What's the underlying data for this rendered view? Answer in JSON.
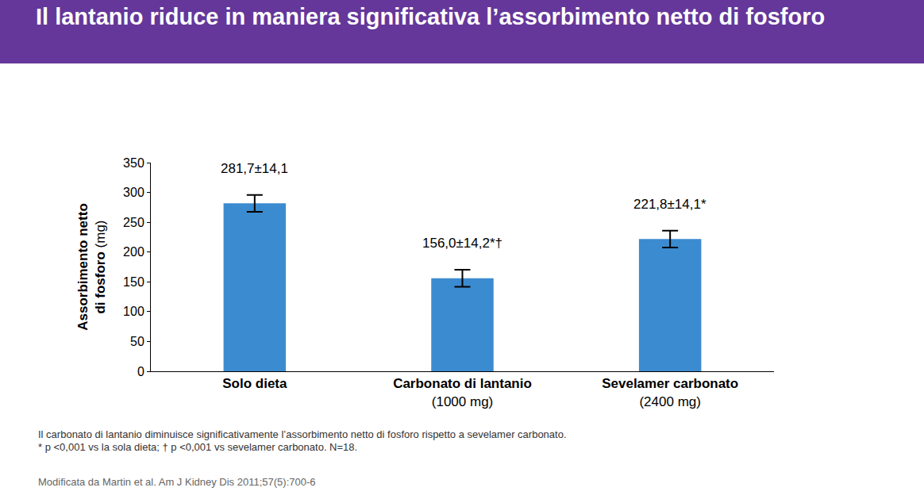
{
  "chart_data": {
    "type": "bar",
    "title": "Il lantanio riduce in maniera significativa l’assorbimento netto di fosforo",
    "y_label": "Assorbimento netto di fosforo (mg)",
    "categories": [
      "Solo dieta",
      "Carbonato di lantanio (1000 mg)",
      "Sevelamer carbonato (2400 mg)"
    ],
    "values": [
      281.7,
      156.0,
      221.8
    ],
    "errors": [
      14.1,
      14.2,
      14.1
    ],
    "value_labels": [
      "281,7±14,1",
      "156,0±14,2*†",
      "221,8±14,1*"
    ],
    "color": "#3b8bd0",
    "ylim": [
      0,
      350
    ],
    "yticks": [
      0,
      50,
      100,
      150,
      200,
      250,
      300,
      350
    ],
    "grid": false,
    "data_labels": true,
    "footnotes": [
      "Il carbonato di lantanio diminuisce significativamente l’assorbimento netto di fosforo rispetto a sevelamer carbonato.",
      "* p <0,001 vs la sola dieta; † p <0,001 vs sevelamer carbonato. N=18."
    ],
    "source": "Modificata da Martin et al. Am J Kidney Dis 2011;57(5):700-6"
  }
}
